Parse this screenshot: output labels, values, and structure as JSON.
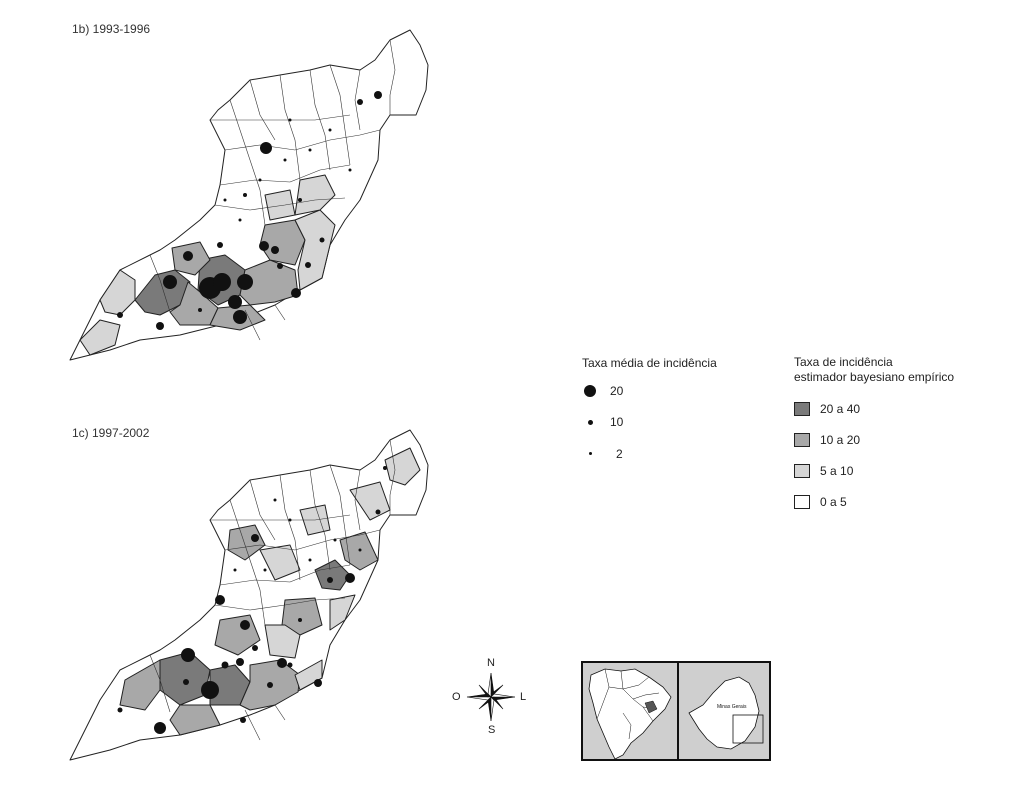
{
  "maps": [
    {
      "id": "1b",
      "title": "1b) 1993-1996"
    },
    {
      "id": "1c",
      "title": "1c) 1997-2002"
    }
  ],
  "legend_circles": {
    "title": "Taxa média de incidência",
    "items": [
      {
        "label": "20",
        "value": 20
      },
      {
        "label": "10",
        "value": 10
      },
      {
        "label": "2",
        "value": 2
      }
    ]
  },
  "legend_classes": {
    "title_line1": "Taxa de incidência",
    "title_line2": "estimador bayesiano empírico",
    "items": [
      {
        "label": "20 a 40",
        "color": "#7a7a7a"
      },
      {
        "label": "10 a 20",
        "color": "#a8a8a8"
      },
      {
        "label": "5 a 10",
        "color": "#d6d6d6"
      },
      {
        "label": "0 a 5",
        "color": "#ffffff"
      }
    ]
  },
  "compass": {
    "n": "N",
    "s": "S",
    "e": "L",
    "w": "O"
  },
  "inset": {
    "label": "Minas Gerais"
  }
}
